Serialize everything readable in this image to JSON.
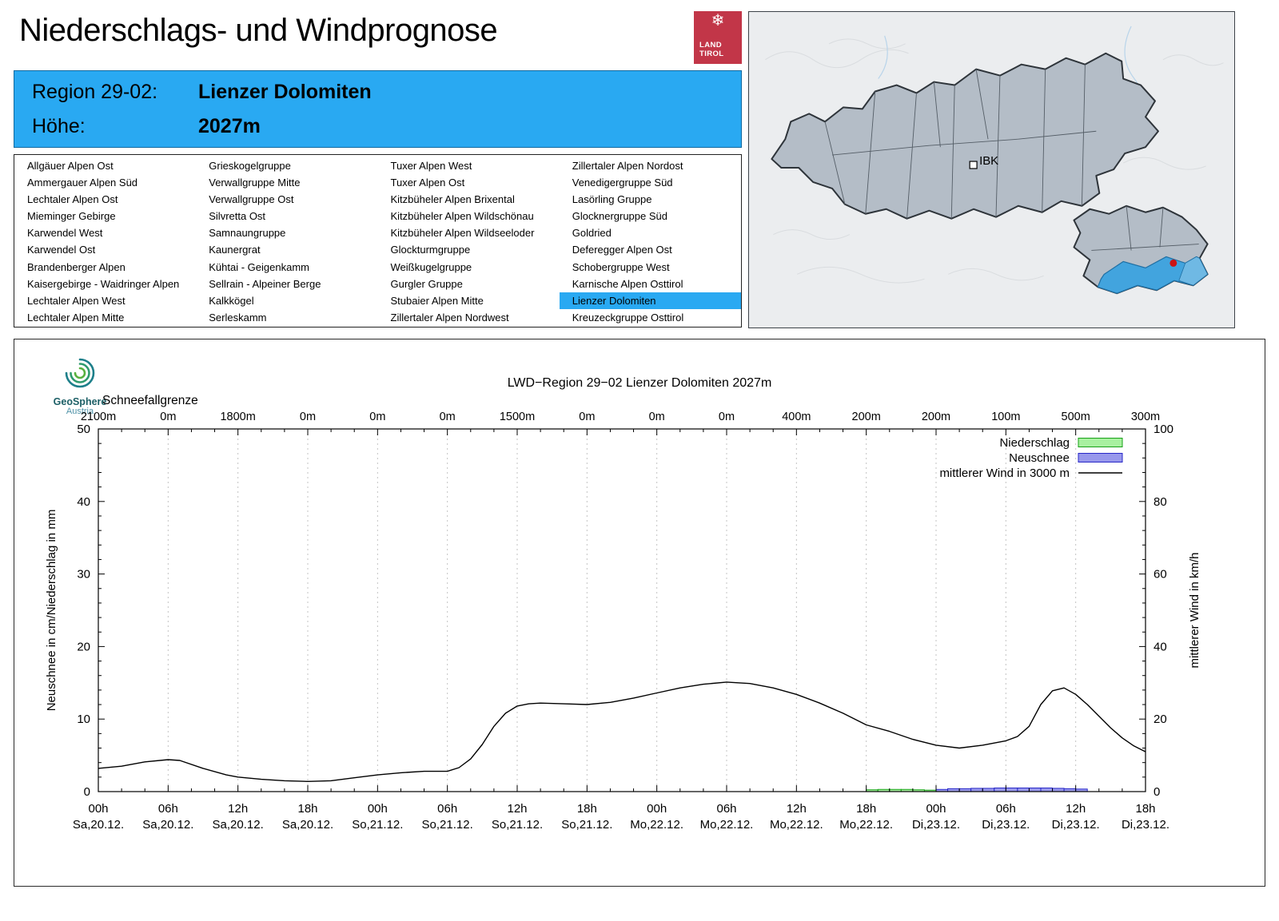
{
  "page": {
    "title": "Niederschlags- und Windprognose"
  },
  "logo": {
    "line1": "LAND",
    "line2": "TIROL"
  },
  "map": {
    "city_label": "IBK"
  },
  "region_header": {
    "region_label": "Region 29-02:",
    "region_value": "Lienzer Dolomiten",
    "altitude_label": "Höhe:",
    "altitude_value": "2027m"
  },
  "region_list": {
    "selected": "Lienzer Dolomiten",
    "columns": [
      [
        "Allgäuer Alpen Ost",
        "Ammergauer Alpen Süd",
        "Lechtaler Alpen Ost",
        "Mieminger Gebirge",
        "Karwendel West",
        "Karwendel Ost",
        "Brandenberger Alpen",
        "Kaisergebirge - Waidringer Alpen",
        "Lechtaler Alpen West",
        "Lechtaler Alpen Mitte"
      ],
      [
        "Grieskogelgruppe",
        "Verwallgruppe Mitte",
        "Verwallgruppe Ost",
        "Silvretta Ost",
        "Samnaungruppe",
        "Kaunergrat",
        "Kühtai - Geigenkamm",
        "Sellrain - Alpeiner Berge",
        "Kalkkögel",
        "Serleskamm"
      ],
      [
        "Tuxer Alpen West",
        "Tuxer Alpen Ost",
        "Kitzbüheler Alpen Brixental",
        "Kitzbüheler Alpen Wildschönau",
        "Kitzbüheler Alpen Wildseeloder",
        "Glockturmgruppe",
        "Weißkugelgruppe",
        "Gurgler Gruppe",
        "Stubaier Alpen Mitte",
        "Zillertaler Alpen Nordwest"
      ],
      [
        "Zillertaler Alpen Nordost",
        "Venedigergruppe Süd",
        "Lasörling Gruppe",
        "Glocknergruppe Süd",
        "Goldried",
        "Deferegger Alpen Ost",
        "Schobergruppe West",
        "Karnische Alpen Osttirol",
        "Lienzer Dolomiten",
        "Kreuzeckgruppe Osttirol"
      ]
    ]
  },
  "branding": {
    "name": "GeoSphere",
    "country": "Austria"
  },
  "chart_data": {
    "type": "line",
    "title": "LWD−Region 29−02 Lienzer Dolomiten 2027m",
    "snowline_label": "Schneefallgrenze",
    "snowline_values": [
      "2100m",
      "0m",
      "1800m",
      "0m",
      "0m",
      "0m",
      "1500m",
      "0m",
      "0m",
      "0m",
      "400m",
      "200m",
      "200m",
      "100m",
      "500m",
      "300m"
    ],
    "x_hours_max": 90,
    "x_ticks": [
      [
        "00h",
        "Sa,20.12."
      ],
      [
        "06h",
        "Sa,20.12."
      ],
      [
        "12h",
        "Sa,20.12."
      ],
      [
        "18h",
        "Sa,20.12."
      ],
      [
        "00h",
        "So,21.12."
      ],
      [
        "06h",
        "So,21.12."
      ],
      [
        "12h",
        "So,21.12."
      ],
      [
        "18h",
        "So,21.12."
      ],
      [
        "00h",
        "Mo,22.12."
      ],
      [
        "06h",
        "Mo,22.12."
      ],
      [
        "12h",
        "Mo,22.12."
      ],
      [
        "18h",
        "Mo,22.12."
      ],
      [
        "00h",
        "Di,23.12."
      ],
      [
        "06h",
        "Di,23.12."
      ],
      [
        "12h",
        "Di,23.12."
      ],
      [
        "18h",
        "Di,23.12."
      ]
    ],
    "ylabel_left": "Neuschnee in cm/Niederschlag in mm",
    "ylabel_right": "mittlerer Wind in km/h",
    "ylim_left": [
      0,
      50
    ],
    "ylim_right": [
      0,
      100
    ],
    "grid": "vertical-dotted",
    "legend_position": "top-right-inside",
    "legend": [
      {
        "label": "Niederschlag",
        "kind": "bar",
        "fill": "#a8f0a0",
        "edge": "#18a018"
      },
      {
        "label": "Neuschnee",
        "kind": "bar",
        "fill": "#9898ec",
        "edge": "#2828c8"
      },
      {
        "label": "mittlerer Wind in 3000 m",
        "kind": "line",
        "color": "#000000"
      }
    ],
    "wind_series_3000m": [
      [
        0,
        6.4
      ],
      [
        2,
        7.0
      ],
      [
        4,
        8.2
      ],
      [
        6,
        8.8
      ],
      [
        7,
        8.6
      ],
      [
        9,
        6.4
      ],
      [
        11,
        4.6
      ],
      [
        12,
        4.0
      ],
      [
        14,
        3.4
      ],
      [
        16,
        3.0
      ],
      [
        18,
        2.8
      ],
      [
        20,
        3.0
      ],
      [
        22,
        3.8
      ],
      [
        24,
        4.6
      ],
      [
        26,
        5.2
      ],
      [
        28,
        5.6
      ],
      [
        30,
        5.6
      ],
      [
        31,
        6.6
      ],
      [
        32,
        9.0
      ],
      [
        33,
        13.0
      ],
      [
        34,
        18.0
      ],
      [
        35,
        21.6
      ],
      [
        36,
        23.6
      ],
      [
        37,
        24.2
      ],
      [
        38,
        24.4
      ],
      [
        40,
        24.2
      ],
      [
        42,
        24.0
      ],
      [
        44,
        24.6
      ],
      [
        46,
        25.8
      ],
      [
        48,
        27.2
      ],
      [
        50,
        28.6
      ],
      [
        52,
        29.6
      ],
      [
        54,
        30.2
      ],
      [
        56,
        29.8
      ],
      [
        58,
        28.6
      ],
      [
        60,
        26.8
      ],
      [
        62,
        24.4
      ],
      [
        64,
        21.6
      ],
      [
        66,
        18.4
      ],
      [
        68,
        16.6
      ],
      [
        70,
        14.4
      ],
      [
        72,
        12.8
      ],
      [
        74,
        12.0
      ],
      [
        76,
        12.8
      ],
      [
        78,
        14.0
      ],
      [
        79,
        15.2
      ],
      [
        80,
        18.0
      ],
      [
        81,
        24.0
      ],
      [
        82,
        27.8
      ],
      [
        83,
        28.6
      ],
      [
        84,
        26.8
      ],
      [
        85,
        24.0
      ],
      [
        86,
        20.8
      ],
      [
        87,
        17.6
      ],
      [
        88,
        14.8
      ],
      [
        89,
        12.6
      ],
      [
        90,
        11.0
      ]
    ],
    "precip_bars_mm": [
      [
        66,
        0.25
      ],
      [
        67,
        0.3
      ],
      [
        68,
        0.3
      ],
      [
        69,
        0.3
      ],
      [
        70,
        0.25
      ],
      [
        71,
        0.2
      ]
    ],
    "snow_bars_cm": [
      [
        72,
        0.3
      ],
      [
        73,
        0.4
      ],
      [
        74,
        0.4
      ],
      [
        75,
        0.45
      ],
      [
        76,
        0.45
      ],
      [
        77,
        0.5
      ],
      [
        78,
        0.5
      ],
      [
        79,
        0.5
      ],
      [
        80,
        0.5
      ],
      [
        81,
        0.5
      ],
      [
        82,
        0.45
      ],
      [
        83,
        0.4
      ],
      [
        84,
        0.35
      ]
    ]
  }
}
